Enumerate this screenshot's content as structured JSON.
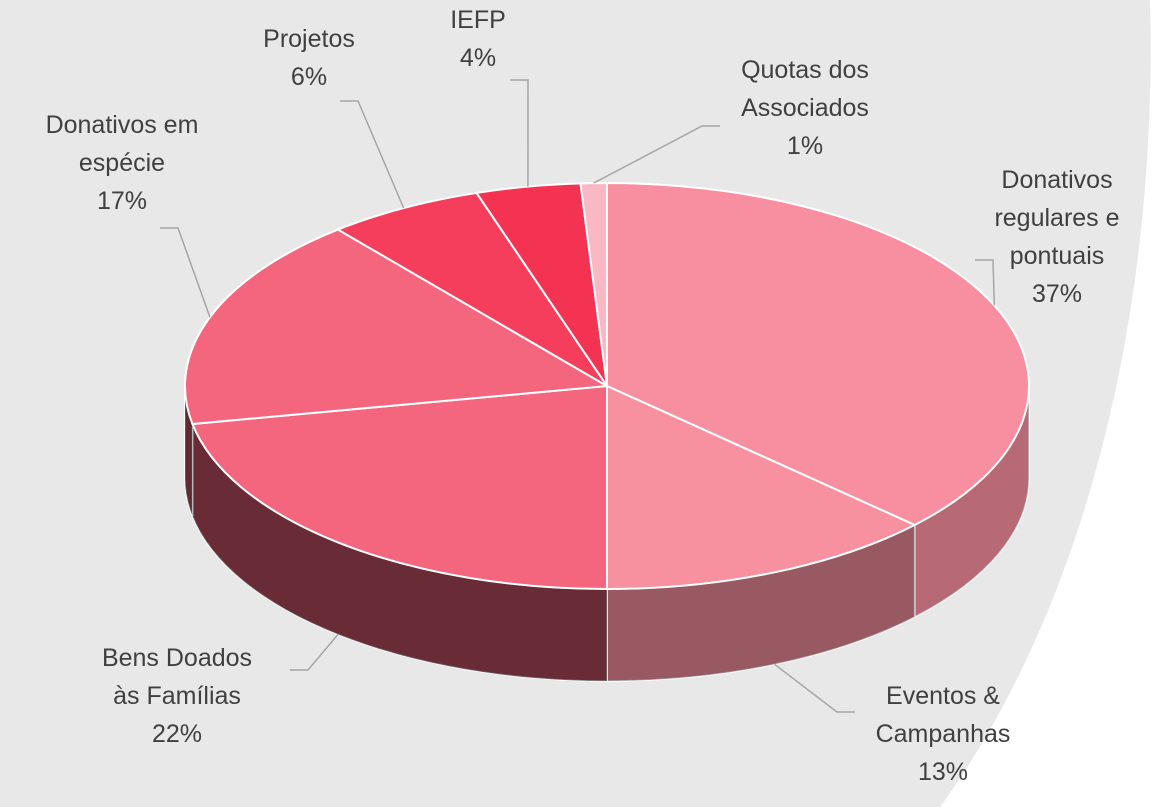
{
  "chart_data": {
    "type": "pie",
    "categories": [
      "Donativos regulares e pontuais",
      "Eventos & Campanhas",
      "Bens Doados às Famílias",
      "Donativos em espécie",
      "Projetos",
      "IEFP",
      "Quotas dos Associados"
    ],
    "values": [
      37,
      13,
      22,
      17,
      6,
      4,
      1
    ],
    "value_labels": [
      "37%",
      "13%",
      "22%",
      "17%",
      "6%",
      "4%",
      "1%"
    ],
    "colors": [
      "#f78fa0",
      "#f7909f",
      "#f4667e",
      "#f4667e",
      "#f43e5c",
      "#f43353",
      "#f9b8c4"
    ],
    "start_angle": 0,
    "direction": "clockwise",
    "3d": true
  }
}
